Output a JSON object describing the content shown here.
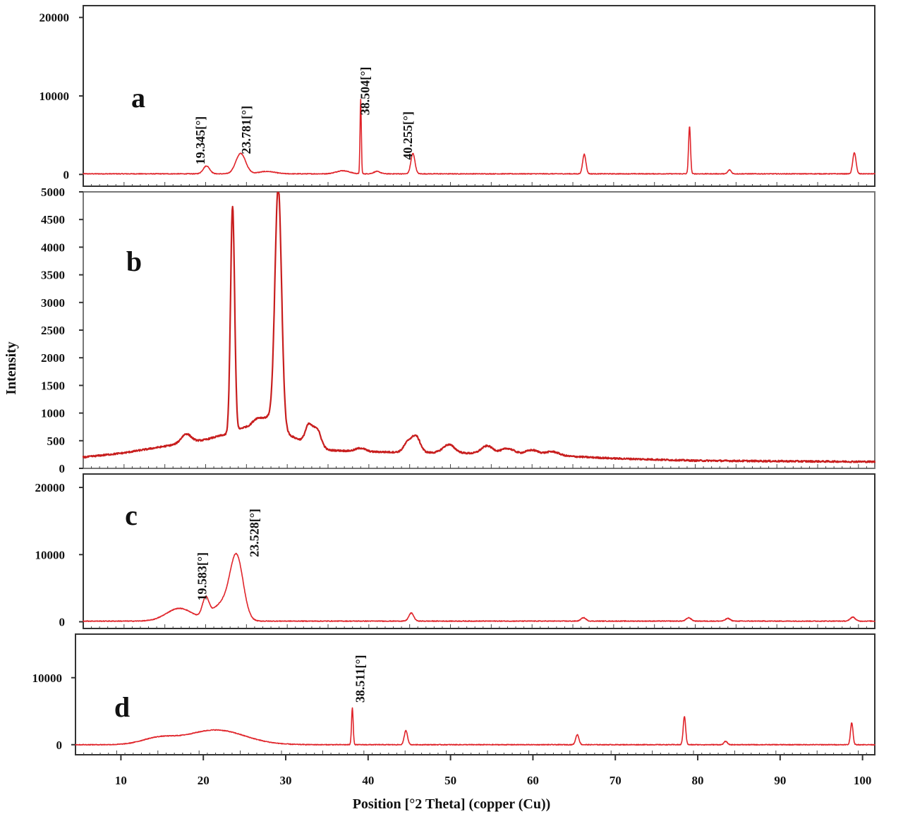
{
  "colors": {
    "trace": "#e0242a",
    "trace_b": "#c81e1e",
    "frame": "#333333"
  },
  "x_axis": {
    "label": "Position [°2 Theta] (copper (Cu))",
    "range": [
      5,
      102
    ],
    "ticks": [
      10,
      20,
      30,
      40,
      50,
      60,
      70,
      80,
      90,
      100
    ]
  },
  "y_axis": {
    "label": "Intensity"
  },
  "chart_data": [
    {
      "type": "line",
      "panel": "a",
      "xlim": [
        5,
        102
      ],
      "ylim": [
        -1500,
        21500
      ],
      "yticks": [
        0,
        10000,
        20000
      ],
      "baseline": 80,
      "peaks": [
        {
          "x": 20.1,
          "height": 1000,
          "width": 0.4
        },
        {
          "x": 24.3,
          "height": 2600,
          "width": 0.6
        },
        {
          "x": 27.5,
          "height": 300,
          "width": 1.0
        },
        {
          "x": 36.8,
          "height": 400,
          "width": 0.8
        },
        {
          "x": 39.0,
          "height": 9500,
          "width": 0.08
        },
        {
          "x": 41.0,
          "height": 300,
          "width": 0.4
        },
        {
          "x": 45.4,
          "height": 2600,
          "width": 0.25
        },
        {
          "x": 66.4,
          "height": 2500,
          "width": 0.2
        },
        {
          "x": 79.3,
          "height": 6000,
          "width": 0.12
        },
        {
          "x": 84.2,
          "height": 500,
          "width": 0.2
        },
        {
          "x": 99.5,
          "height": 2700,
          "width": 0.2
        }
      ],
      "annotations": [
        {
          "text": "19.345[°]",
          "x": 19.345
        },
        {
          "text": "23.781[°]",
          "x": 23.781
        },
        {
          "text": "38.504[°]",
          "x": 38.504
        },
        {
          "text": "40.255[°]",
          "x": 40.255
        }
      ]
    },
    {
      "type": "line",
      "panel": "b",
      "xlim": [
        5,
        102
      ],
      "ylim": [
        0,
        5000
      ],
      "yticks": [
        0,
        500,
        1000,
        1500,
        2000,
        2500,
        3000,
        3500,
        4000,
        4500,
        5000
      ],
      "baseline_points": [
        [
          5,
          200
        ],
        [
          10,
          280
        ],
        [
          15,
          400
        ],
        [
          20,
          520
        ],
        [
          22,
          600
        ],
        [
          25,
          650
        ],
        [
          30,
          600
        ],
        [
          35,
          330
        ],
        [
          40,
          300
        ],
        [
          50,
          280
        ],
        [
          60,
          250
        ],
        [
          70,
          180
        ],
        [
          80,
          140
        ],
        [
          90,
          130
        ],
        [
          102,
          120
        ]
      ],
      "peaks": [
        {
          "x": 17.6,
          "height": 160,
          "width": 0.6
        },
        {
          "x": 23.3,
          "height": 4100,
          "width": 0.25
        },
        {
          "x": 24.5,
          "height": 80,
          "width": 0.6
        },
        {
          "x": 26.2,
          "height": 200,
          "width": 0.7
        },
        {
          "x": 28.0,
          "height": 300,
          "width": 1.0
        },
        {
          "x": 28.9,
          "height": 4300,
          "width": 0.4
        },
        {
          "x": 32.6,
          "height": 300,
          "width": 0.4
        },
        {
          "x": 33.6,
          "height": 320,
          "width": 0.5
        },
        {
          "x": 39.0,
          "height": 60,
          "width": 0.6
        },
        {
          "x": 44.8,
          "height": 180,
          "width": 0.5
        },
        {
          "x": 45.8,
          "height": 280,
          "width": 0.5
        },
        {
          "x": 49.8,
          "height": 150,
          "width": 0.7
        },
        {
          "x": 54.5,
          "height": 140,
          "width": 0.7
        },
        {
          "x": 57.0,
          "height": 100,
          "width": 0.8
        },
        {
          "x": 60.0,
          "height": 80,
          "width": 0.8
        },
        {
          "x": 62.5,
          "height": 70,
          "width": 0.8
        }
      ]
    },
    {
      "type": "line",
      "panel": "c",
      "xlim": [
        5,
        102
      ],
      "ylim": [
        -1000,
        22000
      ],
      "yticks": [
        0,
        10000,
        20000
      ],
      "baseline": 100,
      "peaks": [
        {
          "x": 16.8,
          "height": 1900,
          "width": 1.6
        },
        {
          "x": 20.0,
          "height": 2800,
          "width": 0.4
        },
        {
          "x": 22.0,
          "height": 2500,
          "width": 1.2
        },
        {
          "x": 23.8,
          "height": 9200,
          "width": 0.8
        },
        {
          "x": 45.2,
          "height": 1200,
          "width": 0.3
        },
        {
          "x": 66.3,
          "height": 500,
          "width": 0.3
        },
        {
          "x": 79.2,
          "height": 500,
          "width": 0.3
        },
        {
          "x": 84.0,
          "height": 400,
          "width": 0.3
        },
        {
          "x": 99.3,
          "height": 600,
          "width": 0.3
        }
      ],
      "annotations": [
        {
          "text": "19.583[°]",
          "x": 19.583
        },
        {
          "text": "23.528[°]",
          "x": 23.528
        }
      ]
    },
    {
      "type": "line",
      "panel": "d",
      "xlim": [
        5,
        102
      ],
      "ylim": [
        -1500,
        16500
      ],
      "yticks": [
        0,
        10000
      ],
      "baseline": 0,
      "peaks": [
        {
          "x": 15.0,
          "height": 900,
          "width": 2.0
        },
        {
          "x": 22.0,
          "height": 2200,
          "width": 3.5
        },
        {
          "x": 38.6,
          "height": 5500,
          "width": 0.1
        },
        {
          "x": 45.1,
          "height": 2100,
          "width": 0.2
        },
        {
          "x": 65.9,
          "height": 1500,
          "width": 0.2
        },
        {
          "x": 78.9,
          "height": 4200,
          "width": 0.15
        },
        {
          "x": 83.9,
          "height": 500,
          "width": 0.2
        },
        {
          "x": 99.2,
          "height": 3300,
          "width": 0.15
        }
      ],
      "annotations": [
        {
          "text": "38.511[°]",
          "x": 38.511
        }
      ]
    }
  ]
}
